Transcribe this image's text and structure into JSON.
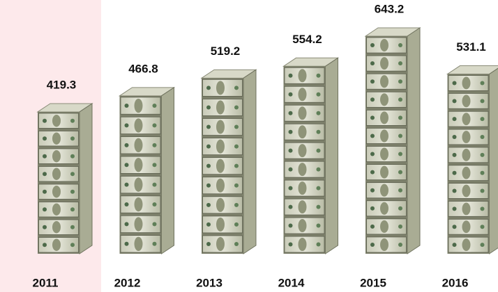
{
  "chart_data": {
    "type": "bar",
    "categories": [
      "2011",
      "2012",
      "2013",
      "2014",
      "2015",
      "2016"
    ],
    "values": [
      419.3,
      466.8,
      519.2,
      554.2,
      643.2,
      531.1
    ]
  }
}
